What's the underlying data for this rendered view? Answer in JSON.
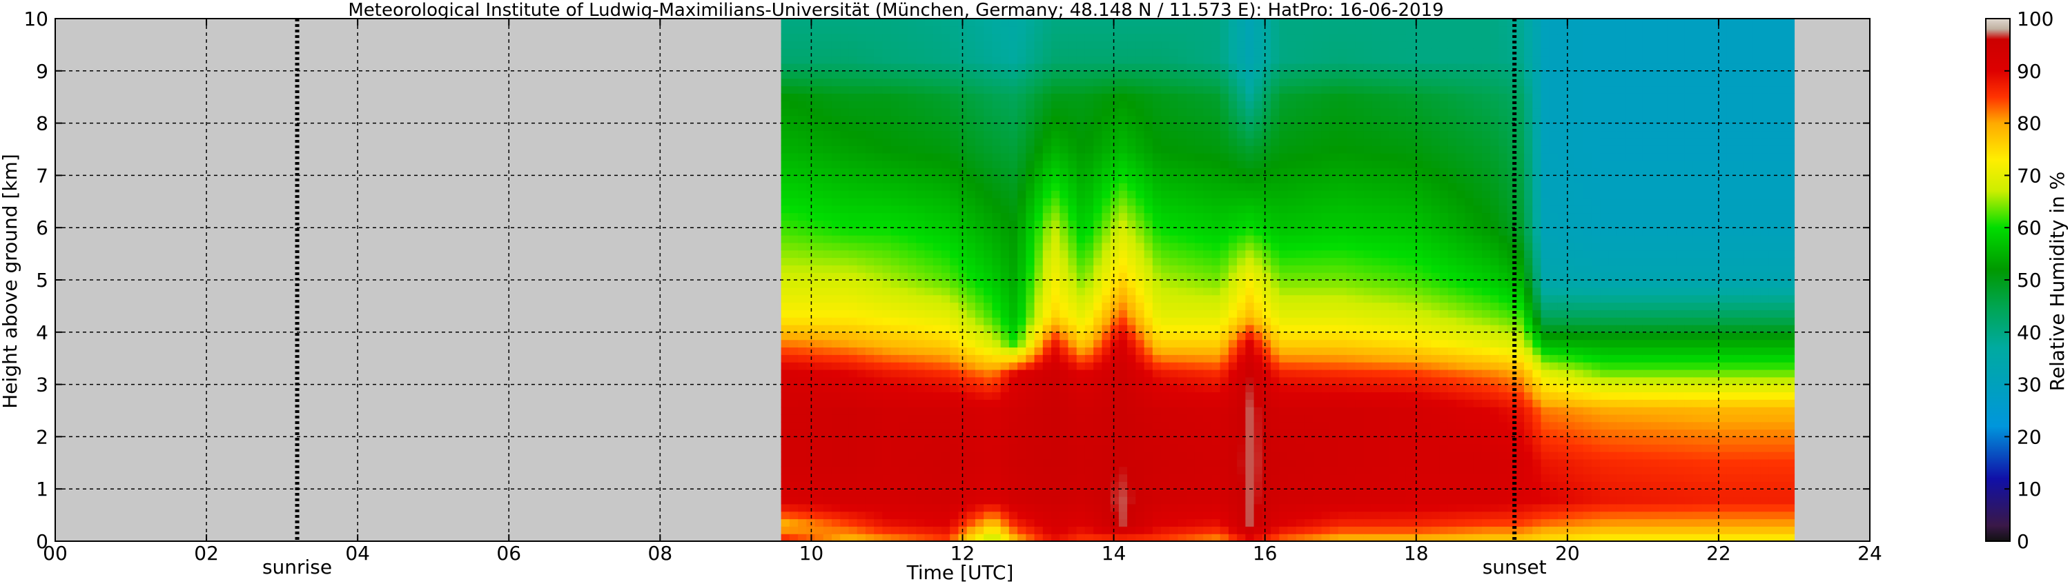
{
  "chart_data": {
    "type": "heatmap",
    "title": "Meteorological Institute of Ludwig-Maximilians-Universität (München, Germany; 48.148 N / 11.573 E):    HatPro: 16-06-2019",
    "xlabel": "Time [UTC]",
    "ylabel": "Height above ground [km]",
    "xlim": [
      0,
      24
    ],
    "ylim": [
      0,
      10
    ],
    "x_ticks": [
      0,
      2,
      4,
      6,
      8,
      10,
      12,
      14,
      16,
      18,
      20,
      22,
      24
    ],
    "x_tick_labels": [
      "00",
      "02",
      "04",
      "06",
      "08",
      "10",
      "12",
      "14",
      "16",
      "18",
      "20",
      "22",
      "24"
    ],
    "y_ticks": [
      0,
      1,
      2,
      3,
      4,
      5,
      6,
      7,
      8,
      9,
      10
    ],
    "y_tick_labels": [
      "0",
      "1",
      "2",
      "3",
      "4",
      "5",
      "6",
      "7",
      "8",
      "9",
      "10"
    ],
    "grid": true,
    "missing_data_color": "#c8c8c8",
    "data_window": [
      9.6,
      23.0
    ],
    "sun_events": [
      {
        "name": "sunrise",
        "time": 3.2
      },
      {
        "name": "sunset",
        "time": 19.3
      }
    ],
    "colorbar": {
      "label": "Relative Humidity in %",
      "min": 0,
      "max": 100,
      "ticks": [
        "0",
        "10",
        "20",
        "30",
        "40",
        "50",
        "60",
        "70",
        "80",
        "90",
        "100"
      ],
      "stops": [
        {
          "v": 0,
          "c": "#111111"
        },
        {
          "v": 3,
          "c": "#3a1848"
        },
        {
          "v": 12,
          "c": "#1010a8"
        },
        {
          "v": 22,
          "c": "#0096dc"
        },
        {
          "v": 37,
          "c": "#00aaa0"
        },
        {
          "v": 45,
          "c": "#00a550"
        },
        {
          "v": 52,
          "c": "#009900"
        },
        {
          "v": 60,
          "c": "#00dd00"
        },
        {
          "v": 67,
          "c": "#ccee00"
        },
        {
          "v": 73,
          "c": "#ffee00"
        },
        {
          "v": 80,
          "c": "#ffaa00"
        },
        {
          "v": 85,
          "c": "#ff3300"
        },
        {
          "v": 90,
          "c": "#dd0000"
        },
        {
          "v": 96,
          "c": "#cc0000"
        },
        {
          "v": 98,
          "c": "#c0b0a0"
        },
        {
          "v": 100,
          "c": "#e0d8d0"
        }
      ]
    },
    "profile_heights_km": [
      0,
      0.3,
      0.8,
      1.5,
      2.5,
      3.2,
      3.8,
      4.3,
      5.0,
      6.0,
      7.5,
      8.5,
      9.2,
      10
    ],
    "profiles": [
      {
        "t": 9.6,
        "rh": [
          88,
          78,
          92,
          94,
          94,
          92,
          82,
          73,
          68,
          62,
          55,
          52,
          42,
          40
        ]
      },
      {
        "t": 10.5,
        "rh": [
          78,
          84,
          93,
          95,
          95,
          90,
          80,
          73,
          68,
          60,
          53,
          50,
          42,
          40
        ]
      },
      {
        "t": 11.0,
        "rh": [
          80,
          88,
          93,
          94,
          94,
          88,
          78,
          72,
          66,
          60,
          52,
          50,
          41,
          40
        ]
      },
      {
        "t": 11.8,
        "rh": [
          84,
          90,
          94,
          95,
          94,
          86,
          76,
          70,
          63,
          58,
          51,
          48,
          40,
          39
        ]
      },
      {
        "t": 12.4,
        "rh": [
          64,
          76,
          91,
          93,
          92,
          82,
          68,
          62,
          58,
          54,
          48,
          45,
          38,
          37
        ]
      },
      {
        "t": 12.7,
        "rh": [
          78,
          86,
          94,
          95,
          94,
          90,
          60,
          56,
          54,
          52,
          47,
          44,
          37,
          36
        ]
      },
      {
        "t": 13.2,
        "rh": [
          88,
          92,
          95,
          96,
          96,
          95,
          88,
          76,
          72,
          67,
          55,
          50,
          42,
          40
        ]
      },
      {
        "t": 13.6,
        "rh": [
          84,
          90,
          94,
          95,
          94,
          90,
          76,
          70,
          64,
          58,
          52,
          50,
          42,
          40
        ]
      },
      {
        "t": 14.1,
        "rh": [
          84,
          97,
          97,
          96,
          96,
          95,
          92,
          84,
          76,
          68,
          56,
          52,
          42,
          40
        ]
      },
      {
        "t": 14.6,
        "rh": [
          84,
          90,
          94,
          95,
          94,
          88,
          76,
          70,
          66,
          60,
          52,
          50,
          42,
          40
        ]
      },
      {
        "t": 15.4,
        "rh": [
          80,
          88,
          93,
          94,
          93,
          86,
          76,
          70,
          64,
          58,
          51,
          48,
          40,
          40
        ]
      },
      {
        "t": 15.8,
        "rh": [
          88,
          97,
          97,
          97,
          97,
          96,
          90,
          78,
          72,
          60,
          48,
          38,
          33,
          32
        ]
      },
      {
        "t": 16.2,
        "rh": [
          82,
          90,
          94,
          95,
          94,
          87,
          76,
          70,
          64,
          57,
          51,
          48,
          40,
          40
        ]
      },
      {
        "t": 17.0,
        "rh": [
          78,
          86,
          93,
          94,
          94,
          86,
          76,
          70,
          64,
          58,
          52,
          50,
          41,
          40
        ]
      },
      {
        "t": 18.0,
        "rh": [
          78,
          86,
          92,
          93,
          93,
          85,
          74,
          68,
          62,
          57,
          51,
          48,
          40,
          40
        ]
      },
      {
        "t": 19.0,
        "rh": [
          76,
          84,
          92,
          93,
          90,
          82,
          70,
          64,
          58,
          52,
          48,
          45,
          40,
          40
        ]
      },
      {
        "t": 19.4,
        "rh": [
          76,
          84,
          91,
          92,
          88,
          80,
          68,
          62,
          55,
          48,
          45,
          43,
          39,
          38
        ]
      },
      {
        "t": 19.7,
        "rh": [
          74,
          82,
          90,
          88,
          82,
          70,
          55,
          44,
          34,
          31,
          30,
          30,
          30,
          30
        ]
      },
      {
        "t": 20.5,
        "rh": [
          72,
          80,
          88,
          86,
          80,
          64,
          54,
          44,
          33,
          30,
          29,
          29,
          29,
          29
        ]
      },
      {
        "t": 22.0,
        "rh": [
          72,
          80,
          87,
          85,
          79,
          64,
          54,
          44,
          33,
          30,
          29,
          29,
          29,
          29
        ]
      },
      {
        "t": 23.0,
        "rh": [
          72,
          80,
          87,
          85,
          79,
          64,
          54,
          44,
          33,
          30,
          29,
          29,
          29,
          29
        ]
      }
    ]
  }
}
